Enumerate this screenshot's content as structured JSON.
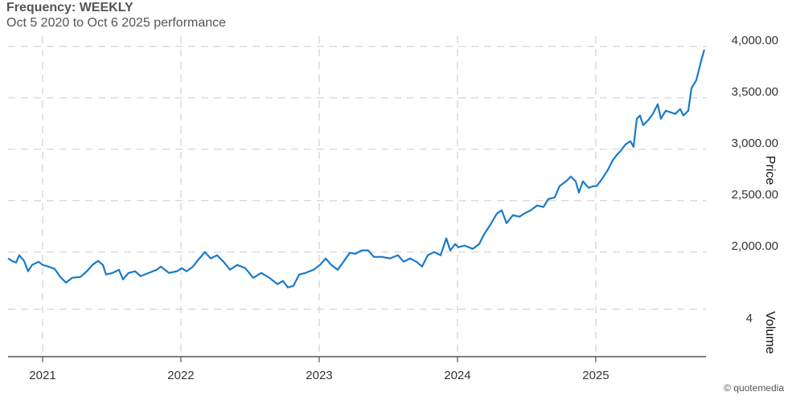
{
  "chart_data": {
    "type": "line",
    "title": "Frequency: WEEKLY",
    "subtitle": "Oct 5 2020 to Oct 6 2025 performance",
    "ylabel": "Price",
    "credit": "© quotemedia",
    "x": [
      2020.75,
      2020.779,
      2020.808,
      2020.831,
      2020.866,
      2020.895,
      2020.924,
      2020.971,
      2021.0,
      2021.041,
      2021.087,
      2021.128,
      2021.169,
      2021.215,
      2021.273,
      2021.32,
      2021.36,
      2021.401,
      2021.436,
      2021.459,
      2021.506,
      2021.552,
      2021.581,
      2021.622,
      2021.669,
      2021.709,
      2021.767,
      2021.826,
      2021.855,
      2021.913,
      2021.971,
      2022.006,
      2022.041,
      2022.087,
      2022.134,
      2022.174,
      2022.215,
      2022.262,
      2022.308,
      2022.355,
      2022.407,
      2022.465,
      2022.523,
      2022.581,
      2022.64,
      2022.698,
      2022.738,
      2022.773,
      2022.814,
      2022.855,
      2022.901,
      2022.959,
      2023.006,
      2023.047,
      2023.087,
      2023.134,
      2023.18,
      2023.221,
      2023.262,
      2023.308,
      2023.355,
      2023.395,
      2023.453,
      2023.512,
      2023.57,
      2023.61,
      2023.657,
      2023.703,
      2023.744,
      2023.785,
      2023.831,
      2023.878,
      2023.919,
      2023.948,
      2023.983,
      2024.006,
      2024.052,
      2024.11,
      2024.157,
      2024.192,
      2024.238,
      2024.285,
      2024.32,
      2024.355,
      2024.401,
      2024.448,
      2024.483,
      2024.529,
      2024.576,
      2024.622,
      2024.657,
      2024.703,
      2024.738,
      2024.785,
      2024.82,
      2024.855,
      2024.878,
      2024.907,
      2024.948,
      2024.983,
      2025.006,
      2025.041,
      2025.087,
      2025.122,
      2025.157,
      2025.18,
      2025.215,
      2025.25,
      2025.273,
      2025.297,
      2025.32,
      2025.343,
      2025.378,
      2025.413,
      2025.448,
      2025.471,
      2025.506,
      2025.541,
      2025.576,
      2025.61,
      2025.634,
      2025.669,
      2025.692,
      2025.727,
      2025.762,
      2025.785
    ],
    "series": [
      {
        "color": "#1a7bc9",
        "values": [
          1938,
          1914,
          1898,
          1969,
          1914,
          1813,
          1875,
          1906,
          1875,
          1859,
          1836,
          1758,
          1703,
          1750,
          1758,
          1813,
          1875,
          1914,
          1875,
          1781,
          1797,
          1828,
          1734,
          1797,
          1813,
          1766,
          1797,
          1828,
          1859,
          1797,
          1813,
          1844,
          1813,
          1859,
          1938,
          2000,
          1938,
          1969,
          1906,
          1828,
          1875,
          1844,
          1750,
          1797,
          1750,
          1688,
          1719,
          1656,
          1672,
          1781,
          1797,
          1828,
          1875,
          1938,
          1875,
          1828,
          1914,
          1992,
          1984,
          2016,
          2016,
          1953,
          1953,
          1938,
          1969,
          1906,
          1938,
          1906,
          1859,
          1969,
          2000,
          1969,
          2133,
          2016,
          2078,
          2047,
          2063,
          2031,
          2078,
          2172,
          2266,
          2375,
          2406,
          2281,
          2359,
          2344,
          2375,
          2406,
          2453,
          2438,
          2516,
          2531,
          2641,
          2688,
          2734,
          2688,
          2578,
          2688,
          2625,
          2641,
          2641,
          2703,
          2797,
          2891,
          2953,
          2984,
          3047,
          3078,
          3023,
          3297,
          3328,
          3234,
          3281,
          3344,
          3438,
          3297,
          3375,
          3359,
          3344,
          3391,
          3328,
          3375,
          3594,
          3672,
          3859,
          3969
        ]
      }
    ],
    "xlim": [
      2020.75,
      2025.797
    ],
    "xticks": [
      2021,
      2022,
      2023,
      2024,
      2025
    ],
    "ylim": [
      1600,
      4100
    ],
    "yticks": [
      {
        "value": 2000,
        "label": "2,000.00"
      },
      {
        "value": 2500,
        "label": "2,500.00"
      },
      {
        "value": 3000,
        "label": "3,000.00"
      },
      {
        "value": 3500,
        "label": "3,500.00"
      },
      {
        "value": 4000,
        "label": "4,000.00"
      }
    ],
    "grid": true,
    "volume_panel": {
      "ylabel": "Volume",
      "ylim": [
        0,
        4
      ],
      "yticks": [
        4
      ]
    }
  }
}
